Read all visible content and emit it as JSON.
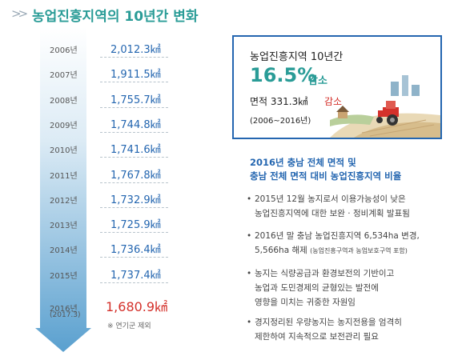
{
  "header": {
    "title": "농업진흥지역의 10년간 변화"
  },
  "chart_data": {
    "type": "table",
    "unit": "㎢",
    "x": [
      "2006년",
      "2007년",
      "2008년",
      "2009년",
      "2010년",
      "2011년",
      "2012년",
      "2013년",
      "2014년",
      "2015년",
      "2016년"
    ],
    "values": [
      2012.3,
      1911.5,
      1755.7,
      1744.8,
      1741.6,
      1767.8,
      1732.9,
      1725.9,
      1736.4,
      1737.4,
      1680.9
    ],
    "rows": [
      {
        "year": "2006년",
        "value": "2,012.3㎢"
      },
      {
        "year": "2007년",
        "value": "1,911.5㎢"
      },
      {
        "year": "2008년",
        "value": "1,755.7㎢"
      },
      {
        "year": "2009년",
        "value": "1,744.8㎢"
      },
      {
        "year": "2010년",
        "value": "1,741.6㎢"
      },
      {
        "year": "2011년",
        "value": "1,767.8㎢"
      },
      {
        "year": "2012년",
        "value": "1,732.9㎢"
      },
      {
        "year": "2013년",
        "value": "1,725.9㎢"
      },
      {
        "year": "2014년",
        "value": "1,736.4㎢"
      },
      {
        "year": "2015년",
        "value": "1,737.4㎢"
      },
      {
        "year": "2016년",
        "value": "1,680.9㎢"
      }
    ],
    "last_subyear": "(2017.3)",
    "footnote": "※ 연기군 제외"
  },
  "summary": {
    "line1": "농업진흥지역 10년간",
    "pct": "16.5%",
    "decrease": "감소",
    "area": "면적 331.3㎢",
    "period": "(2006~2016년)"
  },
  "ratio": {
    "heading_l1": "2016년 충남 전체 면적 및",
    "heading_l2": "충남 전체 면적 대비 농업진흥지역 비율",
    "bullets": [
      {
        "l1": "2015년 12월 농지로서 이용가능성이 낮은",
        "l2": "농업진흥지역에 대한 보완 · 정비계획 발표됨",
        "l2_small": ""
      },
      {
        "l1": "2016년 말 충남 농업진흥지역 6,534ha 변경,",
        "l2": "5,566ha 해제",
        "l2_small": "(농업진흥구역과 농업보호구역 포함)"
      },
      {
        "l1": "농지는 식량공급과 환경보전의 기반이고",
        "l2": "농업과 도민경제의 균형있는 발전에",
        "l3": "영향을 미치는 귀중한 자원임"
      },
      {
        "l1": "경지정리된 우량농지는 농지전용을 엄격히",
        "l2": "제한하여 지속적으로 보전관리 필요"
      }
    ]
  },
  "colors": {
    "teal": "#2a9c97",
    "blue": "#2466b0",
    "red": "#d4312b",
    "arrow_top": "#ffffff",
    "arrow_bottom": "#5aa0cf"
  }
}
